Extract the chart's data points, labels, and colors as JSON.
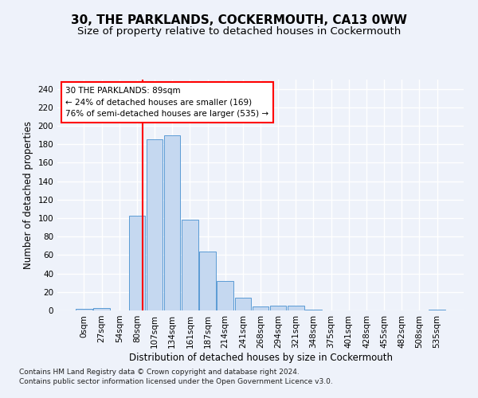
{
  "title": "30, THE PARKLANDS, COCKERMOUTH, CA13 0WW",
  "subtitle": "Size of property relative to detached houses in Cockermouth",
  "xlabel": "Distribution of detached houses by size in Cockermouth",
  "ylabel": "Number of detached properties",
  "footnote1": "Contains HM Land Registry data © Crown copyright and database right 2024.",
  "footnote2": "Contains public sector information licensed under the Open Government Licence v3.0.",
  "bar_labels": [
    "0sqm",
    "27sqm",
    "54sqm",
    "80sqm",
    "107sqm",
    "134sqm",
    "161sqm",
    "187sqm",
    "214sqm",
    "241sqm",
    "268sqm",
    "294sqm",
    "321sqm",
    "348sqm",
    "375sqm",
    "401sqm",
    "428sqm",
    "455sqm",
    "482sqm",
    "508sqm",
    "535sqm"
  ],
  "bar_values": [
    2,
    3,
    0,
    103,
    185,
    190,
    98,
    64,
    32,
    14,
    4,
    5,
    5,
    1,
    0,
    0,
    0,
    0,
    0,
    0,
    1
  ],
  "bar_color": "#c5d8f0",
  "bar_edge_color": "#5b9bd5",
  "vline_color": "red",
  "property_sqm": 89,
  "annotation_text": "30 THE PARKLANDS: 89sqm\n← 24% of detached houses are smaller (169)\n76% of semi-detached houses are larger (535) →",
  "annotation_box_color": "white",
  "annotation_box_edge": "red",
  "ylim": [
    0,
    250
  ],
  "yticks": [
    0,
    20,
    40,
    60,
    80,
    100,
    120,
    140,
    160,
    180,
    200,
    220,
    240
  ],
  "background_color": "#eef2fa",
  "grid_color": "white",
  "title_fontsize": 11,
  "subtitle_fontsize": 9.5,
  "axis_label_fontsize": 8.5,
  "tick_fontsize": 7.5,
  "footnote_fontsize": 6.5
}
